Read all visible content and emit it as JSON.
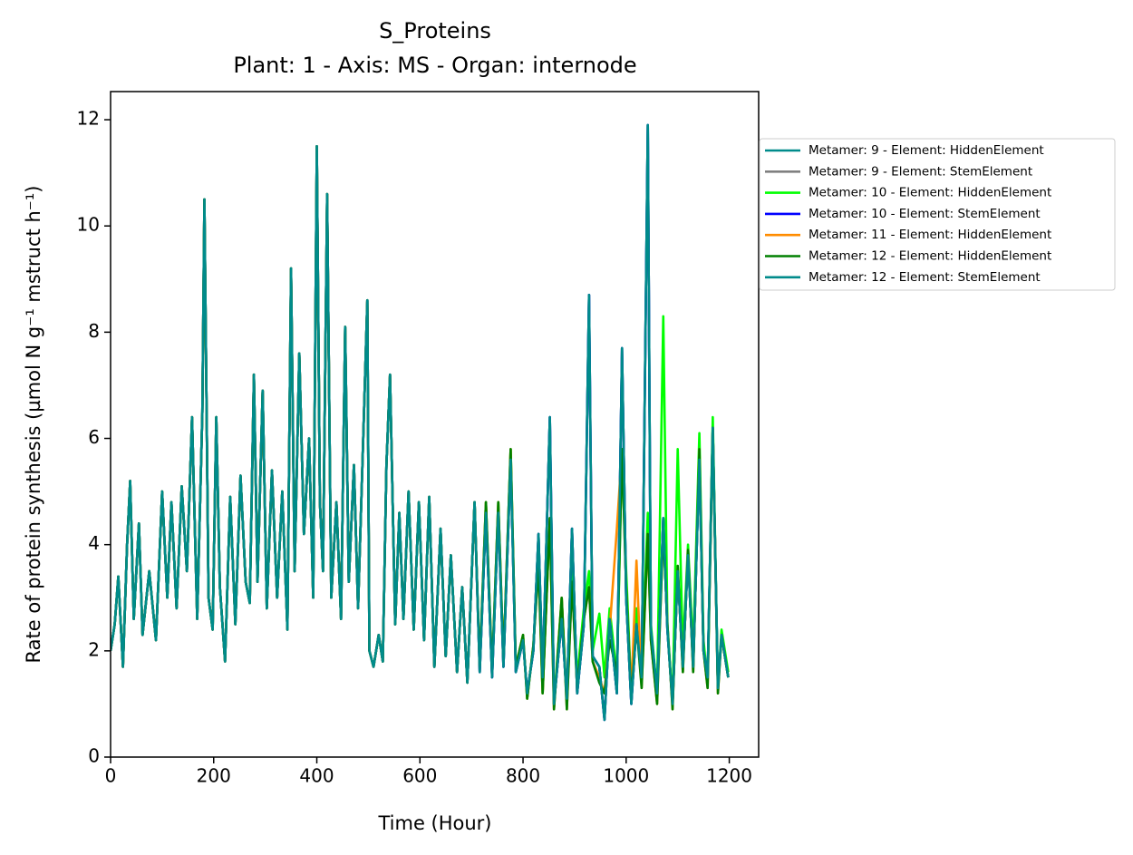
{
  "chart_data": {
    "type": "line",
    "title": "S_Proteins",
    "subtitle": "Plant: 1 - Axis: MS - Organ: internode",
    "x_label": "Time (Hour)",
    "y_label": "Rate of protein synthesis (µmol N g⁻¹ mstruct h⁻¹)",
    "xlim": [
      0,
      1257
    ],
    "ylim": [
      0,
      12.53
    ],
    "xticks": [
      0,
      200,
      400,
      600,
      800,
      1000,
      1200
    ],
    "yticks": [
      0,
      2,
      4,
      6,
      8,
      10,
      12
    ],
    "legend": "outside upper right",
    "x": [
      0,
      8,
      15,
      24,
      32,
      38,
      45,
      55,
      62,
      75,
      88,
      100,
      110,
      118,
      128,
      138,
      148,
      158,
      168,
      178,
      182,
      190,
      198,
      205,
      212,
      222,
      232,
      242,
      252,
      262,
      270,
      278,
      285,
      295,
      303,
      313,
      323,
      333,
      343,
      350,
      357,
      366,
      375,
      385,
      393,
      400,
      406,
      412,
      420,
      428,
      438,
      447,
      455,
      462,
      472,
      480,
      490,
      498,
      502,
      510,
      520,
      528,
      535,
      542,
      552,
      560,
      568,
      578,
      588,
      598,
      608,
      618,
      628,
      640,
      650,
      660,
      672,
      682,
      692,
      706,
      716,
      728,
      740,
      752,
      762,
      776,
      786,
      800,
      808,
      820,
      830,
      838,
      852,
      860,
      875,
      885,
      895,
      905,
      918,
      928,
      935,
      948,
      958,
      968,
      982,
      992,
      1000,
      1010,
      1020,
      1030,
      1042,
      1048,
      1060,
      1072,
      1080,
      1090,
      1100,
      1110,
      1120,
      1130,
      1142,
      1150,
      1158,
      1168,
      1178,
      1185,
      1198
    ],
    "series": [
      {
        "name": "Metamer: 9 - Element: HiddenElement",
        "color": "#008b8b",
        "values": [
          2.0,
          2.5,
          3.4,
          1.7,
          4.0,
          5.2,
          2.6,
          4.4,
          2.3,
          3.5,
          2.2,
          5.0,
          3.0,
          4.8,
          2.8,
          5.1,
          3.5,
          6.4,
          2.6,
          6.5,
          10.5,
          3.0,
          2.4,
          6.4,
          3.2,
          1.8,
          4.9,
          2.5,
          5.3,
          3.3,
          2.9,
          7.2,
          3.3,
          6.9,
          2.8,
          5.4,
          3.0,
          5.0,
          2.4,
          9.2,
          3.5,
          7.6,
          4.2,
          6.0,
          3.0,
          11.5,
          4.8,
          3.5,
          10.6,
          3.0,
          4.8,
          2.6,
          8.1,
          3.3,
          5.5,
          2.8,
          6.0,
          8.6,
          2.0,
          1.7,
          2.3,
          1.8,
          5.5,
          7.2,
          2.5,
          4.6,
          2.6,
          5.0,
          2.4,
          4.8,
          2.2,
          4.9,
          1.7,
          4.3,
          1.9,
          3.8,
          1.6,
          3.2,
          1.4,
          4.8,
          1.6,
          4.6,
          1.5,
          4.6,
          1.7,
          5.6,
          1.6,
          2.2,
          1.2,
          2.0,
          4.2,
          1.5,
          6.4,
          1.0,
          2.6,
          1.1,
          4.3,
          1.2,
          2.5,
          8.7,
          1.9,
          1.7,
          0.7,
          2.6,
          1.2,
          7.7,
          3.0,
          1.0,
          2.5,
          1.5,
          11.9,
          2.4,
          1.2,
          4.5,
          2.4,
          1.0,
          3.5,
          1.7,
          3.8,
          1.7,
          5.6,
          2.0,
          1.5,
          6.2,
          1.3,
          2.3,
          1.5
        ]
      },
      {
        "name": "Metamer: 9 - Element: StemElement",
        "color": "#808080",
        "values": [
          2.0,
          2.5,
          3.4,
          1.7,
          4.0,
          5.2,
          2.6,
          4.4,
          2.3,
          3.5,
          2.2,
          5.0,
          3.0,
          4.8,
          2.8,
          5.1,
          3.5,
          6.4,
          2.6,
          6.5,
          10.5,
          3.0,
          2.4,
          6.4,
          3.2,
          1.8,
          4.9,
          2.5,
          5.3,
          3.3,
          2.9,
          7.2,
          3.3,
          6.9,
          2.8,
          5.4,
          3.0,
          5.0,
          2.4,
          9.2,
          3.5,
          7.6,
          4.2,
          6.0,
          3.0,
          11.5,
          4.8,
          3.5,
          10.6,
          3.0,
          4.8,
          2.6,
          8.1,
          3.3,
          5.5,
          2.8,
          6.0,
          8.6,
          2.0,
          1.7,
          2.3,
          1.8,
          5.5,
          7.2,
          2.5,
          4.6,
          2.6,
          5.0,
          2.4,
          4.8,
          2.2,
          4.9,
          1.7,
          4.3,
          1.9,
          3.8,
          1.6,
          3.2,
          1.4,
          4.8,
          1.6,
          4.6,
          1.5,
          4.6,
          1.7,
          5.6,
          1.6,
          2.2,
          1.2,
          2.0,
          4.2,
          1.5,
          6.4,
          1.0,
          2.6,
          1.1,
          4.3,
          1.2,
          2.5,
          8.7,
          1.9,
          1.7,
          0.7,
          2.6,
          1.2,
          7.7,
          3.0,
          1.0,
          2.5,
          1.5,
          11.9,
          2.4,
          1.2,
          4.5,
          2.4,
          1.0,
          3.5,
          1.7,
          3.8,
          1.7,
          5.6,
          2.0,
          1.5,
          6.2,
          1.3,
          2.3,
          1.5
        ]
      },
      {
        "name": "Metamer: 10 - Element: HiddenElement",
        "color": "#00ff00",
        "values": [
          2.0,
          2.5,
          3.4,
          1.7,
          4.0,
          5.2,
          2.6,
          4.4,
          2.3,
          3.5,
          2.2,
          5.0,
          3.0,
          4.8,
          2.8,
          5.1,
          3.5,
          6.4,
          2.6,
          6.5,
          10.5,
          3.0,
          2.4,
          6.4,
          3.2,
          1.8,
          4.9,
          2.5,
          5.3,
          3.3,
          2.9,
          7.2,
          3.3,
          6.9,
          2.8,
          5.4,
          3.0,
          5.0,
          2.4,
          9.2,
          3.5,
          7.6,
          4.2,
          6.0,
          3.0,
          11.5,
          4.8,
          3.5,
          10.6,
          3.0,
          4.8,
          2.6,
          8.1,
          3.3,
          5.5,
          2.8,
          6.0,
          8.6,
          2.0,
          1.7,
          2.3,
          1.8,
          5.5,
          7.2,
          2.5,
          4.6,
          2.6,
          5.0,
          2.4,
          4.8,
          2.2,
          4.9,
          1.7,
          4.3,
          1.9,
          3.8,
          1.6,
          3.2,
          1.4,
          4.8,
          1.7,
          4.8,
          1.6,
          4.8,
          1.8,
          5.8,
          1.7,
          2.3,
          1.1,
          2.1,
          3.8,
          1.2,
          4.5,
          1.0,
          3.0,
          1.0,
          3.5,
          1.5,
          2.8,
          3.5,
          2.0,
          2.7,
          1.5,
          2.8,
          1.5,
          5.8,
          3.5,
          1.2,
          2.8,
          1.5,
          4.6,
          2.5,
          1.2,
          8.3,
          2.5,
          1.0,
          5.8,
          2.0,
          4.0,
          2.0,
          6.1,
          2.2,
          1.4,
          6.4,
          1.3,
          2.4,
          1.6
        ]
      },
      {
        "name": "Metamer: 10 - Element: StemElement",
        "color": "#0000ff",
        "values": [
          2.0,
          2.5,
          3.4,
          1.7,
          4.0,
          5.2,
          2.6,
          4.4,
          2.3,
          3.5,
          2.2,
          5.0,
          3.0,
          4.8,
          2.8,
          5.1,
          3.5,
          6.4,
          2.6,
          6.5,
          10.5,
          3.0,
          2.4,
          6.4,
          3.2,
          1.8,
          4.9,
          2.5,
          5.3,
          3.3,
          2.9,
          7.2,
          3.3,
          6.9,
          2.8,
          5.4,
          3.0,
          5.0,
          2.4,
          9.2,
          3.5,
          7.6,
          4.2,
          6.0,
          3.0,
          11.5,
          4.8,
          3.5,
          10.6,
          3.0,
          4.8,
          2.6,
          8.1,
          3.3,
          5.5,
          2.8,
          6.0,
          8.6,
          2.0,
          1.7,
          2.3,
          1.8,
          5.5,
          7.2,
          2.5,
          4.6,
          2.6,
          5.0,
          2.4,
          4.8,
          2.2,
          4.9,
          1.7,
          4.3,
          1.9,
          3.8,
          1.6,
          3.2,
          1.4,
          4.8,
          1.6,
          4.6,
          1.5,
          4.6,
          1.7,
          5.6,
          1.6,
          2.2,
          1.2,
          2.0,
          4.2,
          1.5,
          6.4,
          1.0,
          2.6,
          1.1,
          4.3,
          1.2,
          2.5,
          8.7,
          1.9,
          1.7,
          0.7,
          2.6,
          1.2,
          7.7,
          3.0,
          1.0,
          2.5,
          1.5,
          11.9,
          2.4,
          1.2,
          4.5,
          2.4,
          1.0,
          3.5,
          1.7,
          3.8,
          1.7,
          5.6,
          2.0,
          1.5,
          6.2,
          1.3,
          2.3,
          1.5
        ]
      },
      {
        "name": "Metamer: 11 - Element: HiddenElement",
        "color": "#ff8c00",
        "values": [
          2.0,
          2.5,
          3.4,
          1.7,
          4.0,
          5.2,
          2.6,
          4.4,
          2.3,
          3.5,
          2.2,
          5.0,
          3.0,
          4.8,
          2.8,
          5.1,
          3.5,
          6.4,
          2.6,
          6.5,
          10.5,
          3.0,
          2.4,
          6.4,
          3.2,
          1.8,
          4.9,
          2.5,
          5.3,
          3.3,
          2.9,
          7.2,
          3.3,
          6.9,
          2.8,
          5.4,
          3.0,
          5.0,
          2.4,
          9.2,
          3.5,
          7.6,
          4.2,
          6.0,
          3.0,
          11.5,
          4.8,
          3.5,
          10.6,
          3.0,
          4.8,
          2.6,
          8.1,
          3.3,
          5.5,
          2.8,
          6.0,
          8.6,
          2.0,
          1.7,
          2.3,
          1.8,
          5.5,
          7.2,
          2.5,
          4.6,
          2.6,
          5.0,
          2.4,
          4.8,
          2.2,
          4.9,
          1.7,
          4.3,
          1.9,
          3.8,
          1.6,
          3.2,
          1.4,
          4.8,
          1.7,
          4.8,
          1.6,
          4.8,
          1.8,
          5.8,
          1.7,
          2.3,
          1.1,
          2.1,
          3.6,
          1.2,
          4.5,
          0.9,
          3.0,
          0.9,
          3.3,
          1.3,
          2.6,
          3.2,
          1.8,
          1.5,
          1.2,
          2.4,
          4.3,
          5.8,
          3.2,
          1.2,
          3.7,
          1.3,
          4.2,
          2.2,
          1.0,
          4.3,
          2.5,
          0.9,
          3.6,
          1.6,
          3.9,
          1.6,
          5.8,
          2.0,
          1.3,
          6.2,
          1.2,
          2.3,
          1.5
        ]
      },
      {
        "name": "Metamer: 12 - Element: HiddenElement",
        "color": "#008000",
        "values": [
          2.0,
          2.5,
          3.4,
          1.7,
          4.0,
          5.2,
          2.6,
          4.4,
          2.3,
          3.5,
          2.2,
          5.0,
          3.0,
          4.8,
          2.8,
          5.1,
          3.5,
          6.4,
          2.6,
          6.5,
          10.5,
          3.0,
          2.4,
          6.4,
          3.2,
          1.8,
          4.9,
          2.5,
          5.3,
          3.3,
          2.9,
          7.2,
          3.3,
          6.9,
          2.8,
          5.4,
          3.0,
          5.0,
          2.4,
          9.2,
          3.5,
          7.6,
          4.2,
          6.0,
          3.0,
          11.5,
          4.8,
          3.5,
          10.6,
          3.0,
          4.8,
          2.6,
          8.1,
          3.3,
          5.5,
          2.8,
          6.0,
          8.6,
          2.0,
          1.7,
          2.3,
          1.8,
          5.5,
          7.2,
          2.5,
          4.6,
          2.6,
          5.0,
          2.4,
          4.8,
          2.2,
          4.9,
          1.7,
          4.3,
          1.9,
          3.8,
          1.6,
          3.2,
          1.4,
          4.8,
          1.7,
          4.8,
          1.6,
          4.8,
          1.8,
          5.8,
          1.7,
          2.3,
          1.1,
          2.1,
          3.6,
          1.2,
          4.5,
          0.9,
          3.0,
          0.9,
          3.3,
          1.3,
          2.6,
          3.2,
          1.8,
          1.4,
          1.2,
          2.2,
          1.6,
          5.8,
          3.2,
          1.1,
          2.5,
          1.3,
          4.2,
          2.2,
          1.0,
          4.3,
          2.5,
          0.9,
          3.6,
          1.6,
          3.9,
          1.6,
          5.8,
          2.0,
          1.3,
          6.2,
          1.2,
          2.3,
          1.5
        ]
      },
      {
        "name": "Metamer: 12 - Element: StemElement",
        "color": "#008b8b",
        "values": [
          2.0,
          2.5,
          3.4,
          1.7,
          4.0,
          5.2,
          2.6,
          4.4,
          2.3,
          3.5,
          2.2,
          5.0,
          3.0,
          4.8,
          2.8,
          5.1,
          3.5,
          6.4,
          2.6,
          6.5,
          10.5,
          3.0,
          2.4,
          6.4,
          3.2,
          1.8,
          4.9,
          2.5,
          5.3,
          3.3,
          2.9,
          7.2,
          3.3,
          6.9,
          2.8,
          5.4,
          3.0,
          5.0,
          2.4,
          9.2,
          3.5,
          7.6,
          4.2,
          6.0,
          3.0,
          11.5,
          4.8,
          3.5,
          10.6,
          3.0,
          4.8,
          2.6,
          8.1,
          3.3,
          5.5,
          2.8,
          6.0,
          8.6,
          2.0,
          1.7,
          2.3,
          1.8,
          5.5,
          7.2,
          2.5,
          4.6,
          2.6,
          5.0,
          2.4,
          4.8,
          2.2,
          4.9,
          1.7,
          4.3,
          1.9,
          3.8,
          1.6,
          3.2,
          1.4,
          4.8,
          1.6,
          4.6,
          1.5,
          4.6,
          1.7,
          5.6,
          1.6,
          2.2,
          1.2,
          2.0,
          4.2,
          1.5,
          6.4,
          1.0,
          2.6,
          1.1,
          4.3,
          1.2,
          2.5,
          8.7,
          1.9,
          1.7,
          0.7,
          2.6,
          1.2,
          7.7,
          3.0,
          1.0,
          2.5,
          1.5,
          11.9,
          2.4,
          1.2,
          4.5,
          2.4,
          1.0,
          3.5,
          1.7,
          3.8,
          1.7,
          5.6,
          2.0,
          1.5,
          6.2,
          1.3,
          2.3,
          1.5
        ]
      }
    ]
  }
}
